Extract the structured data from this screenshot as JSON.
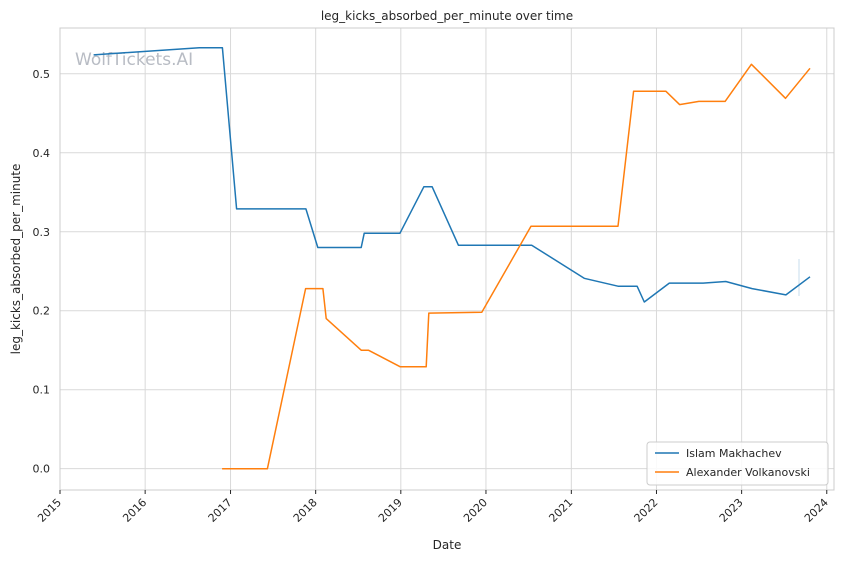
{
  "chart_data": {
    "type": "line",
    "title": "leg_kicks_absorbed_per_minute over time",
    "xlabel": "Date",
    "ylabel": "leg_kicks_absorbed_per_minute",
    "watermark": "WolfTickets.AI",
    "xlim": [
      "2015-01-01",
      "2024-02-01"
    ],
    "ylim": [
      -0.027,
      0.558
    ],
    "x_ticks": [
      "2015",
      "2016",
      "2017",
      "2018",
      "2019",
      "2020",
      "2021",
      "2022",
      "2023",
      "2024"
    ],
    "y_ticks": [
      "0.0",
      "0.1",
      "0.2",
      "0.3",
      "0.4",
      "0.5"
    ],
    "grid": true,
    "legend_position": "lower-right",
    "colors": {
      "series_0": "#1f77b4",
      "series_1": "#ff7f0e",
      "grid": "#d9d9d9",
      "axes": "#cccccc"
    },
    "series": [
      {
        "name": "Islam Makhachev",
        "color": "#1f77b4",
        "points": [
          [
            "2015-05-25",
            0.524
          ],
          [
            "2016-08-20",
            0.533
          ],
          [
            "2016-11-27",
            0.533
          ],
          [
            "2017-01-27",
            0.329
          ],
          [
            "2017-10-15",
            0.329
          ],
          [
            "2017-11-20",
            0.329
          ],
          [
            "2018-01-10",
            0.28
          ],
          [
            "2018-07-15",
            0.28
          ],
          [
            "2018-07-28",
            0.298
          ],
          [
            "2018-12-28",
            0.298
          ],
          [
            "2019-04-10",
            0.357
          ],
          [
            "2019-05-15",
            0.357
          ],
          [
            "2019-09-05",
            0.283
          ],
          [
            "2020-07-15",
            0.283
          ],
          [
            "2021-02-25",
            0.241
          ],
          [
            "2021-07-20",
            0.231
          ],
          [
            "2021-10-10",
            0.231
          ],
          [
            "2021-11-10",
            0.211
          ],
          [
            "2022-02-25",
            0.235
          ],
          [
            "2022-07-20",
            0.235
          ],
          [
            "2022-10-25",
            0.237
          ],
          [
            "2023-02-15",
            0.228
          ],
          [
            "2023-07-10",
            0.22
          ],
          [
            "2023-10-21",
            0.243
          ]
        ]
      },
      {
        "name": "Alexander Volkanovski",
        "color": "#ff7f0e",
        "points": [
          [
            "2016-11-26",
            0.0
          ],
          [
            "2017-06-08",
            0.0
          ],
          [
            "2017-11-19",
            0.228
          ],
          [
            "2018-02-01",
            0.228
          ],
          [
            "2018-02-15",
            0.19
          ],
          [
            "2018-07-15",
            0.15
          ],
          [
            "2018-08-15",
            0.15
          ],
          [
            "2018-12-30",
            0.129
          ],
          [
            "2019-03-10",
            0.129
          ],
          [
            "2019-04-20",
            0.129
          ],
          [
            "2019-05-01",
            0.197
          ],
          [
            "2019-12-14",
            0.198
          ],
          [
            "2020-07-12",
            0.307
          ],
          [
            "2021-07-20",
            0.307
          ],
          [
            "2021-09-25",
            0.478
          ],
          [
            "2022-02-10",
            0.478
          ],
          [
            "2022-04-10",
            0.461
          ],
          [
            "2022-07-02",
            0.465
          ],
          [
            "2022-10-22",
            0.465
          ],
          [
            "2023-02-12",
            0.512
          ],
          [
            "2023-07-08",
            0.469
          ],
          [
            "2023-10-21",
            0.507
          ]
        ]
      }
    ]
  }
}
